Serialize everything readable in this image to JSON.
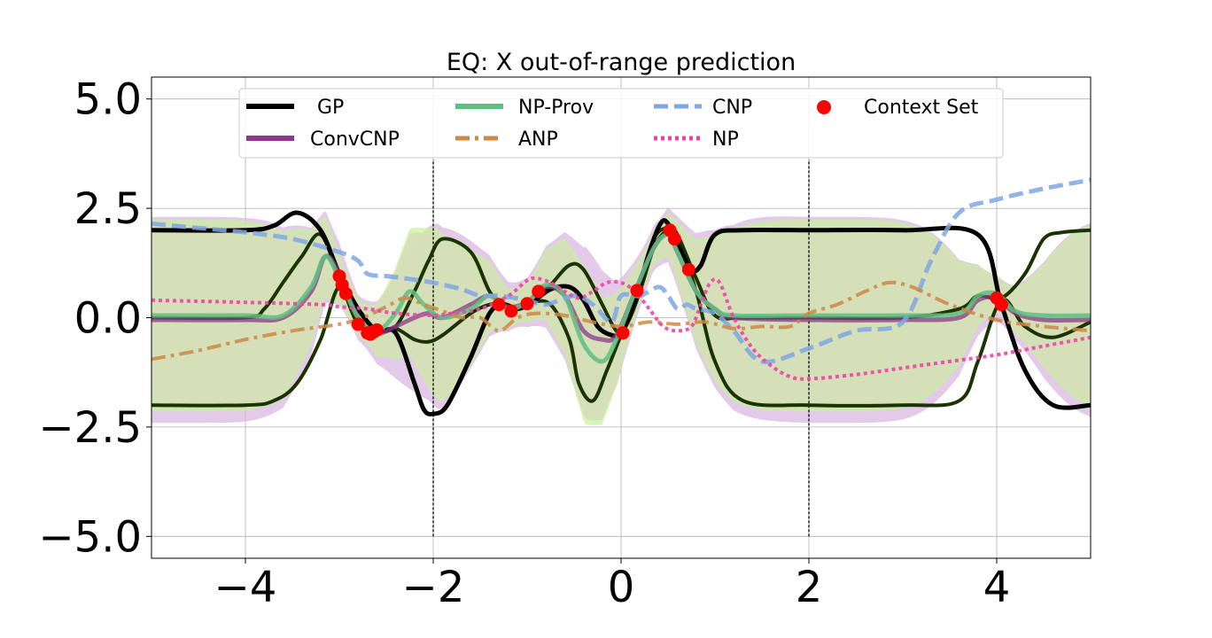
{
  "chart_data": {
    "type": "line",
    "title": "EQ: X out-of-range prediction",
    "xlabel": "",
    "ylabel": "",
    "xlim": [
      -5,
      5
    ],
    "ylim": [
      -5.5,
      5.5
    ],
    "x_ticks": [
      -4,
      -2,
      0,
      2,
      4
    ],
    "x_tick_labels": [
      "−4",
      "−2",
      "0",
      "2",
      "4"
    ],
    "y_ticks": [
      5.0,
      2.5,
      0.0,
      -2.5,
      -5.0
    ],
    "y_tick_labels": [
      "5.0",
      "2.5",
      "0.0",
      "−2.5",
      "−5.0"
    ],
    "grid": true,
    "legend_position": "top",
    "vertical_lines": [
      -2,
      2
    ],
    "legend": [
      {
        "label": "GP",
        "style": "solid-black"
      },
      {
        "label": "NP-Prov",
        "style": "solid-green"
      },
      {
        "label": "CNP",
        "style": "dashed-blue"
      },
      {
        "label": "Context Set",
        "style": "red-dot"
      },
      {
        "label": "ConvCNP",
        "style": "solid-purple"
      },
      {
        "label": "ANP",
        "style": "dashdot-orange"
      },
      {
        "label": "NP",
        "style": "dotted-pink"
      }
    ],
    "colors": {
      "gp": "#000000",
      "gp_samples": "#1a3300",
      "convcnp": "#8b3a8b",
      "convcnp_band": "#d9b3e0",
      "npprov": "#5fbf80",
      "npprov_band": "#c6f29a",
      "overlap_band": "#d6ddb8",
      "cnp": "#7fa7e3",
      "anp": "#cc8844",
      "np": "#ee44aa",
      "context": "#ff0000",
      "vline": "#000000"
    },
    "context_set": {
      "x": [
        -3.0,
        -2.97,
        -2.93,
        -2.8,
        -2.7,
        -2.67,
        -2.63,
        -2.6,
        -1.3,
        -1.17,
        -1.0,
        -0.88,
        0.02,
        0.17,
        0.52,
        0.57,
        0.72,
        4.0,
        4.05
      ],
      "y": [
        0.95,
        0.75,
        0.55,
        -0.15,
        -0.35,
        -0.38,
        -0.32,
        -0.28,
        0.3,
        0.15,
        0.32,
        0.6,
        -0.35,
        0.62,
        2.0,
        1.8,
        1.1,
        0.45,
        0.3
      ]
    },
    "series": [
      {
        "name": "GP",
        "x": [
          -5,
          -4.0,
          -3.7,
          -3.45,
          -3.2,
          -3.0,
          -2.8,
          -2.6,
          -2.4,
          -2.2,
          -2.1,
          -2.0,
          -1.85,
          -1.6,
          -1.4,
          -1.25,
          -1.1,
          -0.95,
          -0.75,
          -0.55,
          -0.4,
          -0.25,
          -0.1,
          0.0,
          0.15,
          0.3,
          0.42,
          0.5,
          0.62,
          0.75,
          0.85,
          1.0,
          1.3,
          2.0,
          3.0,
          3.8,
          4.05,
          4.3,
          4.6,
          5.0
        ],
        "y": [
          2.0,
          2.0,
          2.1,
          2.4,
          2.0,
          1.0,
          0.2,
          -0.3,
          -0.35,
          -1.5,
          -2.1,
          -2.2,
          -2.0,
          -0.9,
          0.1,
          0.3,
          0.2,
          0.35,
          0.65,
          0.7,
          0.4,
          -0.2,
          -0.4,
          -0.35,
          0.4,
          1.5,
          2.15,
          2.15,
          1.6,
          1.1,
          1.2,
          1.9,
          2.0,
          2.0,
          2.0,
          1.9,
          0.3,
          -1.2,
          -2.0,
          -2.0
        ]
      },
      {
        "name": "GP upper",
        "x": [
          -5,
          -4.0,
          -3.8,
          -3.6,
          -3.4,
          -3.2,
          -3.0,
          -2.8,
          -2.6,
          -2.4,
          -2.2,
          -2.05,
          -1.9,
          -1.6,
          -1.4,
          -1.25,
          -1.1,
          -0.95,
          -0.75,
          -0.55,
          -0.4,
          -0.2,
          -0.05,
          0.05,
          0.2,
          0.35,
          0.5,
          0.6,
          0.8,
          1.0,
          1.3,
          2.0,
          3.0,
          3.6,
          3.8,
          4.05,
          4.3,
          4.5,
          4.7,
          5.0
        ],
        "y": [
          0.0,
          0.0,
          0.2,
          0.8,
          1.4,
          1.9,
          0.9,
          -0.15,
          -0.3,
          -0.2,
          0.6,
          1.3,
          1.8,
          1.5,
          0.6,
          0.3,
          0.2,
          0.35,
          0.75,
          1.2,
          1.1,
          0.3,
          -0.3,
          -0.2,
          0.6,
          1.8,
          2.05,
          1.9,
          0.9,
          0.05,
          0.0,
          0.0,
          0.0,
          0.2,
          0.5,
          0.45,
          1.0,
          1.8,
          1.95,
          2.0
        ]
      },
      {
        "name": "GP lower",
        "x": [
          -5,
          -4.0,
          -3.7,
          -3.45,
          -3.2,
          -3.0,
          -2.8,
          -2.6,
          -2.4,
          -2.2,
          -2.05,
          -1.9,
          -1.6,
          -1.4,
          -1.25,
          -1.1,
          -0.95,
          -0.75,
          -0.55,
          -0.45,
          -0.3,
          -0.15,
          0.0,
          0.2,
          0.35,
          0.5,
          0.6,
          0.8,
          1.0,
          1.3,
          2.0,
          3.0,
          3.6,
          3.8,
          4.05,
          4.3,
          4.6,
          5.0
        ],
        "y": [
          -2.0,
          -2.0,
          -1.9,
          -1.5,
          -0.5,
          0.7,
          -0.15,
          -0.3,
          -0.25,
          -0.5,
          -0.55,
          -0.4,
          0.1,
          0.3,
          0.3,
          0.2,
          0.35,
          0.3,
          -0.5,
          -1.5,
          -1.9,
          -1.2,
          -0.4,
          0.6,
          1.6,
          2.0,
          1.8,
          0.6,
          -1.0,
          -1.9,
          -2.0,
          -2.0,
          -1.9,
          -1.0,
          0.4,
          -0.2,
          -0.45,
          -0.1
        ]
      },
      {
        "name": "ConvCNP",
        "x": [
          -5,
          -4.0,
          -3.6,
          -3.3,
          -3.15,
          -3.0,
          -2.8,
          -2.6,
          -2.4,
          -2.2,
          -2.05,
          -1.9,
          -1.6,
          -1.4,
          -1.2,
          -1.0,
          -0.8,
          -0.6,
          -0.4,
          -0.2,
          -0.05,
          0.15,
          0.35,
          0.5,
          0.6,
          0.8,
          1.0,
          1.2,
          2.0,
          3.0,
          3.6,
          3.8,
          4.0,
          4.2,
          4.5,
          5.0
        ],
        "y": [
          -0.05,
          -0.05,
          0.0,
          0.6,
          1.4,
          1.0,
          0.0,
          -0.35,
          -0.2,
          0.0,
          0.1,
          0.0,
          0.3,
          0.5,
          0.25,
          0.35,
          0.7,
          0.5,
          -0.3,
          -0.5,
          -0.4,
          0.6,
          1.6,
          1.9,
          1.5,
          0.6,
          0.2,
          0.0,
          -0.05,
          -0.05,
          0.0,
          0.4,
          0.45,
          0.1,
          -0.05,
          -0.05
        ]
      },
      {
        "name": "NP-Prov",
        "x": [
          -5,
          -4.0,
          -3.6,
          -3.3,
          -3.15,
          -3.0,
          -2.8,
          -2.6,
          -2.4,
          -2.25,
          -2.1,
          -1.9,
          -1.6,
          -1.4,
          -1.2,
          -1.0,
          -0.8,
          -0.6,
          -0.4,
          -0.2,
          -0.05,
          0.15,
          0.35,
          0.5,
          0.6,
          0.8,
          1.0,
          1.2,
          2.0,
          3.0,
          3.6,
          3.8,
          4.0,
          4.2,
          4.5,
          5.0
        ],
        "y": [
          0.05,
          0.05,
          0.05,
          0.7,
          1.4,
          0.9,
          0.0,
          -0.3,
          0.1,
          0.6,
          0.3,
          0.0,
          0.2,
          0.5,
          0.2,
          0.35,
          0.75,
          0.5,
          -0.6,
          -1.0,
          -0.5,
          0.6,
          1.6,
          1.9,
          1.5,
          0.6,
          0.2,
          0.05,
          0.05,
          0.05,
          0.1,
          0.5,
          0.55,
          0.15,
          0.05,
          0.05
        ]
      },
      {
        "name": "CNP",
        "x": [
          -5,
          -4.5,
          -4.0,
          -3.5,
          -3.0,
          -2.8,
          -2.7,
          -2.5,
          -2.3,
          -2.0,
          -1.7,
          -1.5,
          -1.3,
          -1.0,
          -0.8,
          -0.5,
          -0.3,
          -0.1,
          0.0,
          0.2,
          0.4,
          0.5,
          0.6,
          0.7,
          0.8,
          1.0,
          1.2,
          1.5,
          2.0,
          2.5,
          3.0,
          3.3,
          3.6,
          4.0,
          4.5,
          5.0
        ],
        "y": [
          2.15,
          2.05,
          1.95,
          1.8,
          1.5,
          1.3,
          1.0,
          0.95,
          0.9,
          0.8,
          0.65,
          0.5,
          0.5,
          0.4,
          0.3,
          0.5,
          0.3,
          -0.1,
          0.5,
          0.5,
          0.7,
          0.5,
          0.2,
          0.3,
          0.2,
          0.1,
          -0.3,
          -1.0,
          -0.7,
          -0.3,
          -0.1,
          1.3,
          2.4,
          2.7,
          2.95,
          3.15
        ]
      },
      {
        "name": "ANP",
        "x": [
          -5,
          -4.5,
          -4.0,
          -3.5,
          -3.0,
          -2.75,
          -2.5,
          -2.3,
          -2.1,
          -1.9,
          -1.7,
          -1.5,
          -1.3,
          -1.1,
          -0.9,
          -0.6,
          -0.3,
          0.0,
          0.3,
          0.6,
          0.9,
          1.2,
          1.5,
          1.8,
          2.0,
          2.3,
          2.6,
          2.85,
          3.1,
          3.5,
          4.0,
          4.5,
          5.0
        ],
        "y": [
          -0.95,
          -0.75,
          -0.5,
          -0.3,
          -0.15,
          0.0,
          0.25,
          0.45,
          0.3,
          0.15,
          0.0,
          0.0,
          -0.3,
          0.0,
          0.1,
          0.05,
          -0.1,
          -0.2,
          -0.1,
          -0.15,
          -0.1,
          -0.25,
          -0.2,
          -0.2,
          0.1,
          0.3,
          0.6,
          0.8,
          0.7,
          0.3,
          -0.05,
          -0.2,
          -0.3
        ]
      },
      {
        "name": "NP",
        "x": [
          -5,
          -4.0,
          -3.2,
          -3.0,
          -2.7,
          -2.4,
          -2.0,
          -1.8,
          -1.5,
          -1.2,
          -1.0,
          -0.9,
          -0.75,
          -0.6,
          -0.45,
          -0.3,
          -0.15,
          0.0,
          0.15,
          0.3,
          0.45,
          0.6,
          0.75,
          0.85,
          0.95,
          1.05,
          1.2,
          1.4,
          1.6,
          1.8,
          2.0,
          2.5,
          3.0,
          3.5,
          4.0,
          4.5,
          5.0
        ],
        "y": [
          0.4,
          0.35,
          0.3,
          0.25,
          0.2,
          0.1,
          0.05,
          0.1,
          0.2,
          0.5,
          0.85,
          0.9,
          0.8,
          0.6,
          0.45,
          0.6,
          0.8,
          0.8,
          0.6,
          0.2,
          -0.2,
          -0.3,
          -0.2,
          0.3,
          0.8,
          0.8,
          0.0,
          -0.7,
          -1.1,
          -1.35,
          -1.4,
          -1.3,
          -1.15,
          -1.0,
          -0.85,
          -0.65,
          -0.45
        ]
      }
    ]
  }
}
